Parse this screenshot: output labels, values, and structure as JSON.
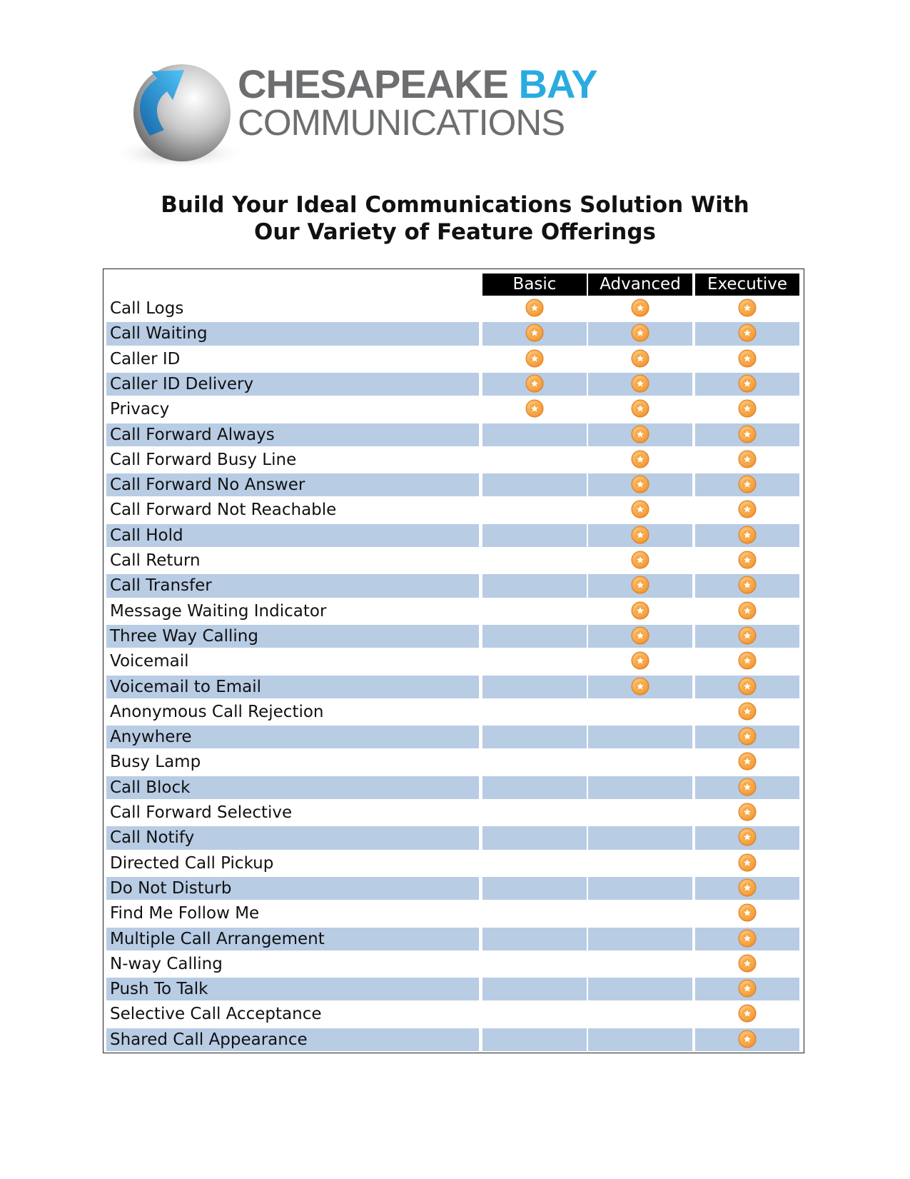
{
  "logo": {
    "name": "CHESAPEAKE",
    "accent": "BAY",
    "subtitle": "COMMUNICATIONS"
  },
  "title": [
    "Build Your Ideal Communications Solution With",
    "Our Variety of Feature Offerings"
  ],
  "table": {
    "columns": [
      "Basic",
      "Advanced",
      "Executive"
    ],
    "rows": [
      {
        "feature": "Call Logs",
        "included": [
          true,
          true,
          true
        ]
      },
      {
        "feature": "Call Waiting",
        "included": [
          true,
          true,
          true
        ]
      },
      {
        "feature": "Caller ID",
        "included": [
          true,
          true,
          true
        ]
      },
      {
        "feature": "Caller ID Delivery",
        "included": [
          true,
          true,
          true
        ]
      },
      {
        "feature": "Privacy",
        "included": [
          true,
          true,
          true
        ]
      },
      {
        "feature": "Call Forward Always",
        "included": [
          false,
          true,
          true
        ]
      },
      {
        "feature": "Call Forward Busy Line",
        "included": [
          false,
          true,
          true
        ]
      },
      {
        "feature": "Call Forward No Answer",
        "included": [
          false,
          true,
          true
        ]
      },
      {
        "feature": "Call Forward Not Reachable",
        "included": [
          false,
          true,
          true
        ]
      },
      {
        "feature": "Call Hold",
        "included": [
          false,
          true,
          true
        ]
      },
      {
        "feature": "Call Return",
        "included": [
          false,
          true,
          true
        ]
      },
      {
        "feature": "Call Transfer",
        "included": [
          false,
          true,
          true
        ]
      },
      {
        "feature": "Message Waiting Indicator",
        "included": [
          false,
          true,
          true
        ]
      },
      {
        "feature": "Three Way Calling",
        "included": [
          false,
          true,
          true
        ]
      },
      {
        "feature": "Voicemail",
        "included": [
          false,
          true,
          true
        ]
      },
      {
        "feature": "Voicemail to Email",
        "included": [
          false,
          true,
          true
        ]
      },
      {
        "feature": "Anonymous Call Rejection",
        "included": [
          false,
          false,
          true
        ]
      },
      {
        "feature": "Anywhere",
        "included": [
          false,
          false,
          true
        ]
      },
      {
        "feature": "Busy Lamp",
        "included": [
          false,
          false,
          true
        ]
      },
      {
        "feature": "Call Block",
        "included": [
          false,
          false,
          true
        ]
      },
      {
        "feature": "Call Forward Selective",
        "included": [
          false,
          false,
          true
        ]
      },
      {
        "feature": "Call Notify",
        "included": [
          false,
          false,
          true
        ]
      },
      {
        "feature": "Directed Call Pickup",
        "included": [
          false,
          false,
          true
        ]
      },
      {
        "feature": "Do Not Disturb",
        "included": [
          false,
          false,
          true
        ]
      },
      {
        "feature": "Find Me Follow Me",
        "included": [
          false,
          false,
          true
        ]
      },
      {
        "feature": "Multiple Call Arrangement",
        "included": [
          false,
          false,
          true
        ]
      },
      {
        "feature": "N-way Calling",
        "included": [
          false,
          false,
          true
        ]
      },
      {
        "feature": "Push To Talk",
        "included": [
          false,
          false,
          true
        ]
      },
      {
        "feature": "Selective Call Acceptance",
        "included": [
          false,
          false,
          true
        ]
      },
      {
        "feature": "Shared Call Appearance",
        "included": [
          false,
          false,
          true
        ]
      }
    ]
  }
}
